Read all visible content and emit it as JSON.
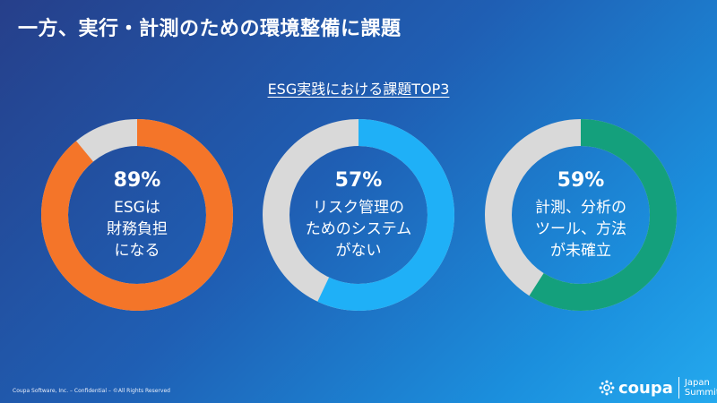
{
  "title": "一方、実行・計測のための環境整備に課題",
  "subtitle": "ESG実践における課題TOP3",
  "colors": {
    "track": "#d9d9d9",
    "orange": "#f47529",
    "blue": "#1fb0f7",
    "green": "#14a07c"
  },
  "chart_data": {
    "type": "pie",
    "title": "ESG実践における課題TOP3",
    "series": [
      {
        "value": 89,
        "percent_label": "89%",
        "label": "ESGは\n財務負担\nになる",
        "color": "#f47529"
      },
      {
        "value": 57,
        "percent_label": "57%",
        "label": "リスク管理の\nためのシステム\nがない",
        "color": "#1fb0f7"
      },
      {
        "value": 59,
        "percent_label": "59%",
        "label": "計測、分析の\nツール、方法\nが未確立",
        "color": "#14a07c"
      }
    ]
  },
  "footer": "Coupa Software, Inc. – Confidential – ©All Rights Reserved",
  "logo": {
    "word": "coupa",
    "event_line1": "Japan",
    "event_line2": "Summit"
  }
}
